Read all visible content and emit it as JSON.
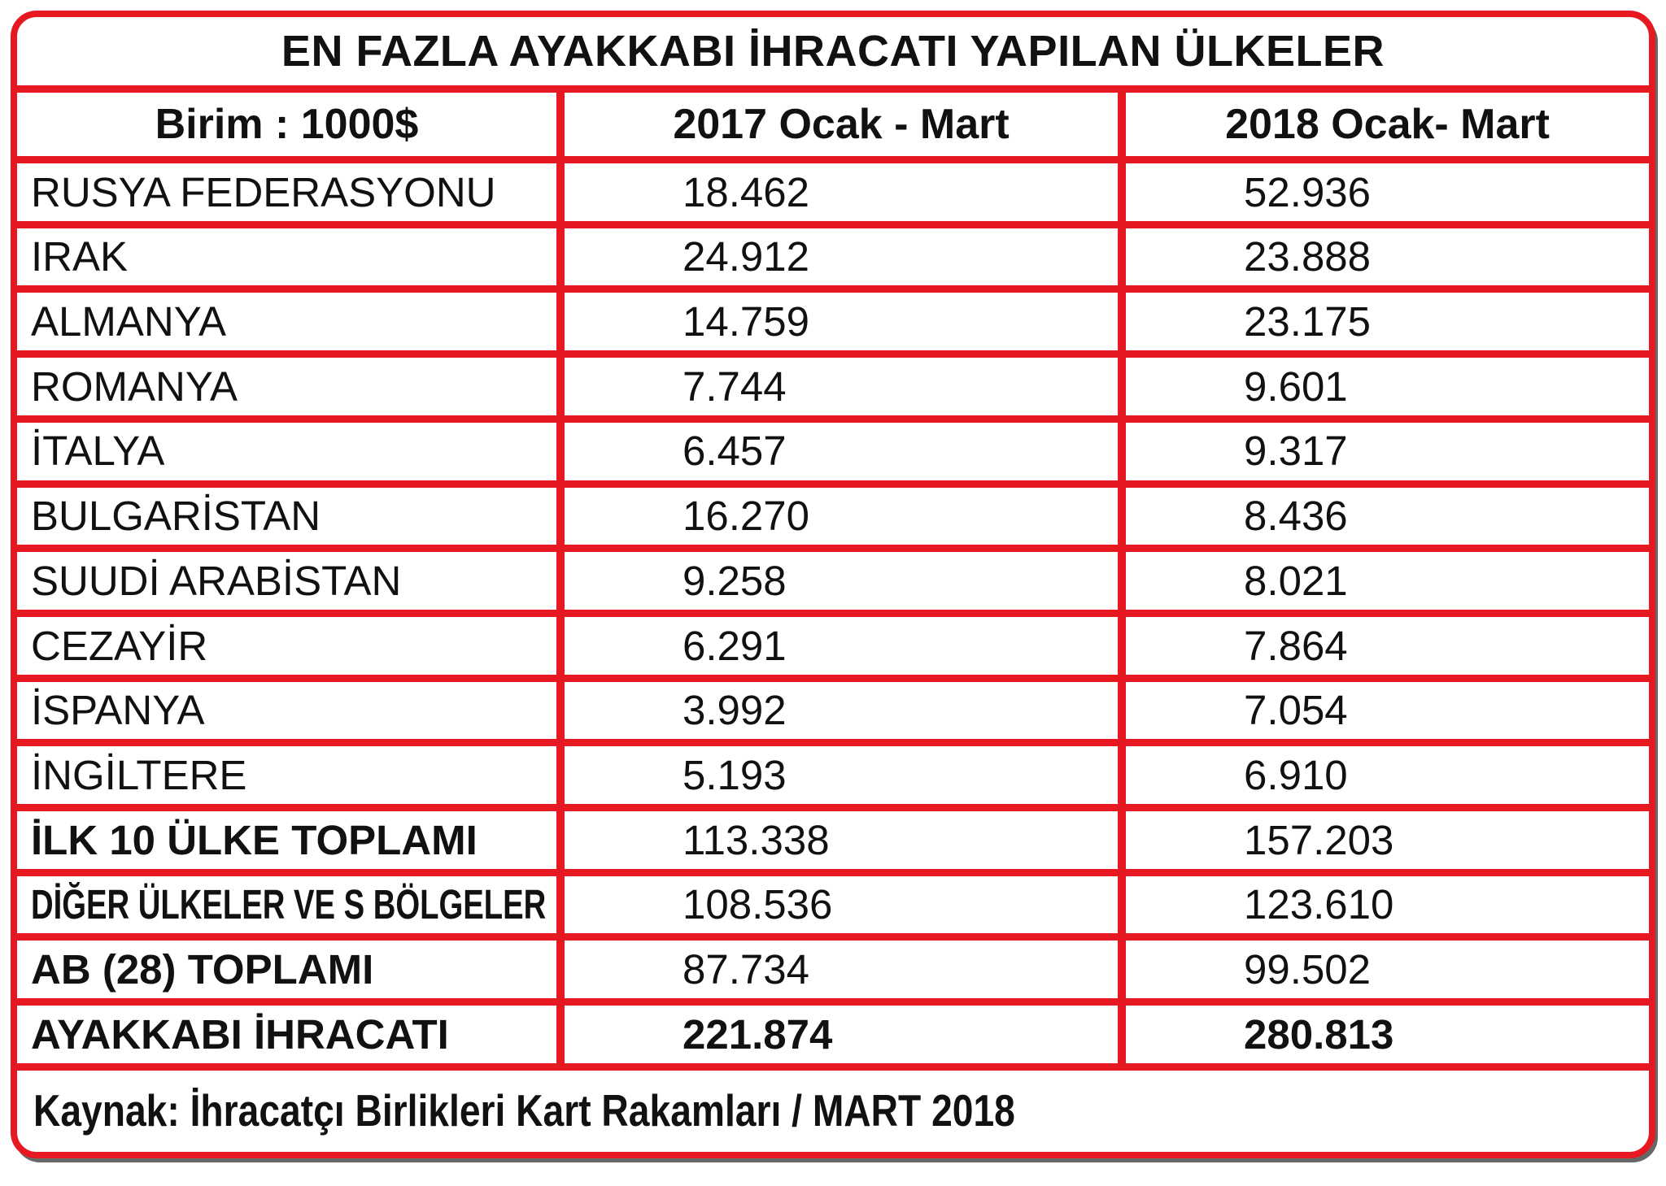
{
  "colors": {
    "border": "#e61923",
    "text": "#111111",
    "background": "#ffffff"
  },
  "table": {
    "title": "EN FAZLA AYAKKABI İHRACATI YAPILAN ÜLKELER",
    "columns": [
      "Birim : 1000$",
      "2017 Ocak - Mart",
      "2018 Ocak- Mart"
    ],
    "rows": [
      {
        "label": "RUSYA FEDERASYONU",
        "v2017": "18.462",
        "v2018": "52.936",
        "style": "normal"
      },
      {
        "label": "IRAK",
        "v2017": "24.912",
        "v2018": "23.888",
        "style": "normal"
      },
      {
        "label": "ALMANYA",
        "v2017": "14.759",
        "v2018": "23.175",
        "style": "normal"
      },
      {
        "label": "ROMANYA",
        "v2017": "7.744",
        "v2018": "9.601",
        "style": "normal"
      },
      {
        "label": "İTALYA",
        "v2017": "6.457",
        "v2018": "9.317",
        "style": "normal"
      },
      {
        "label": "BULGARİSTAN",
        "v2017": "16.270",
        "v2018": "8.436",
        "style": "normal"
      },
      {
        "label": "SUUDİ ARABİSTAN",
        "v2017": "9.258",
        "v2018": "8.021",
        "style": "normal"
      },
      {
        "label": "CEZAYİR",
        "v2017": "6.291",
        "v2018": "7.864",
        "style": "normal"
      },
      {
        "label": "İSPANYA",
        "v2017": "3.992",
        "v2018": "7.054",
        "style": "normal"
      },
      {
        "label": "İNGİLTERE",
        "v2017": "5.193",
        "v2018": "6.910",
        "style": "normal"
      },
      {
        "label": "İLK 10 ÜLKE TOPLAMI",
        "v2017": "113.338",
        "v2018": "157.203",
        "style": "bold-label"
      },
      {
        "label": "DİĞER ÜLKELER VE S BÖLGELER",
        "v2017": "108.536",
        "v2018": "123.610",
        "style": "bold-condensed"
      },
      {
        "label": "AB (28) TOPLAMI",
        "v2017": "87.734",
        "v2018": "99.502",
        "style": "bold-label"
      },
      {
        "label": "AYAKKABI İHRACATI",
        "v2017": "221.874",
        "v2018": "280.813",
        "style": "bold-all"
      }
    ],
    "footer": "Kaynak: İhracatçı Birlikleri Kart Rakamları / MART 2018"
  },
  "chart_data": {
    "type": "table",
    "title": "EN FAZLA AYAKKABI İHRACATI YAPILAN ÜLKELER",
    "unit": "1000$",
    "categories": [
      "RUSYA FEDERASYONU",
      "IRAK",
      "ALMANYA",
      "ROMANYA",
      "İTALYA",
      "BULGARİSTAN",
      "SUUDİ ARABİSTAN",
      "CEZAYİR",
      "İSPANYA",
      "İNGİLTERE",
      "İLK 10 ÜLKE TOPLAMI",
      "DİĞER ÜLKELER VE S BÖLGELER",
      "AB (28) TOPLAMI",
      "AYAKKABI İHRACATI"
    ],
    "series": [
      {
        "name": "2017 Ocak - Mart",
        "values": [
          18462,
          24912,
          14759,
          7744,
          6457,
          16270,
          9258,
          6291,
          3992,
          5193,
          113338,
          108536,
          87734,
          221874
        ]
      },
      {
        "name": "2018 Ocak- Mart",
        "values": [
          52936,
          23888,
          23175,
          9601,
          9317,
          8436,
          8021,
          7864,
          7054,
          6910,
          157203,
          123610,
          99502,
          280813
        ]
      }
    ],
    "source": "Kaynak: İhracatçı Birlikleri Kart Rakamları / MART 2018"
  }
}
